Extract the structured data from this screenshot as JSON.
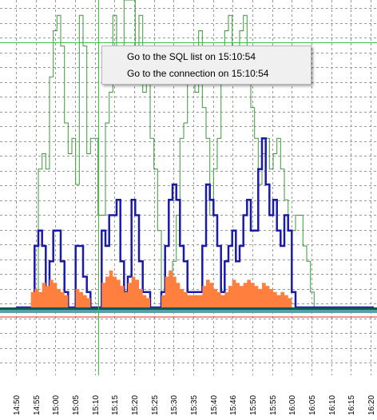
{
  "chart_data": {
    "type": "line",
    "title": "",
    "xlabel": "",
    "ylabel": "",
    "x_tick_labels": [
      "14:50",
      "14:55",
      "15:00",
      "15:05",
      "15:10",
      "15:15",
      "15:20",
      "15:25",
      "15:30",
      "15:35",
      "15:40",
      "15:46",
      "15:50",
      "15:55",
      "16:00",
      "16:05",
      "16:10",
      "16:15",
      "16:20"
    ],
    "grid": true,
    "selected_time": "15:10:54",
    "series": [
      {
        "color": "#3a9a3a",
        "style": "step-thin",
        "values": [
          0,
          0,
          0,
          0,
          0,
          0,
          0.45,
          0.5,
          0.45,
          0.75,
          0.9,
          0.95,
          0.85,
          0.6,
          0.5,
          0.55,
          0.4,
          0.95,
          0.85,
          0.5,
          0.55,
          0.55,
          0.3,
          0.3,
          0.6,
          0.7,
          0.95,
          0.8,
          0.75,
          1.0,
          1.0,
          1.0,
          0.85,
          0.95,
          0.7,
          0.85,
          0.55,
          0.45,
          0.25,
          0.05,
          0.05,
          0.1,
          0.15,
          0.3,
          0.55,
          0.6,
          0.75,
          0.75,
          0.7,
          0.9,
          0.65,
          0.55,
          0.3,
          0.45,
          0.55,
          0.75,
          0.9,
          0.95,
          0.85,
          0.75,
          0.9,
          0.95,
          0.85,
          0.65,
          0.55,
          0.4,
          0.5,
          0.55,
          0.45,
          0.5,
          0.55,
          0.45,
          0.35,
          0.25,
          0.25,
          0.3,
          0.3,
          0.2,
          0.15,
          0.05,
          0,
          0,
          0,
          0,
          0,
          0,
          0,
          0,
          0,
          0,
          0,
          0,
          0,
          0,
          0,
          0
        ]
      },
      {
        "color": "#1a1aaa",
        "style": "step-thick",
        "values": [
          0,
          0,
          0,
          0,
          0,
          0.2,
          0.25,
          0.2,
          0.05,
          0.15,
          0.25,
          0.25,
          0.15,
          0.05,
          0,
          0,
          0.2,
          0.2,
          0.1,
          0.05,
          0,
          0,
          0,
          0.25,
          0.2,
          0.3,
          0.3,
          0.35,
          0.15,
          0.05,
          0.1,
          0.35,
          0.3,
          0.15,
          0.05,
          0.05,
          0,
          0,
          0,
          0.05,
          0.2,
          0.35,
          0.4,
          0.35,
          0.2,
          0.15,
          0.05,
          0.05,
          0.05,
          0.05,
          0.2,
          0.4,
          0.35,
          0.3,
          0.2,
          0.05,
          0.15,
          0.2,
          0.25,
          0.15,
          0.2,
          0.3,
          0.35,
          0.25,
          0.25,
          0.45,
          0.55,
          0.4,
          0.3,
          0.35,
          0.25,
          0.2,
          0.3,
          0.25,
          0.05,
          0,
          0,
          0,
          0,
          0,
          0,
          0,
          0,
          0,
          0,
          0,
          0,
          0,
          0,
          0,
          0,
          0,
          0,
          0,
          0,
          0
        ]
      },
      {
        "color": "#ff7f3f",
        "style": "band",
        "values": [
          0,
          0,
          0,
          0,
          0.05,
          0.06,
          0.05,
          0.08,
          0.07,
          0.09,
          0.08,
          0.06,
          0.05,
          0.04,
          0,
          0,
          0.06,
          0.05,
          0.04,
          0.03,
          0,
          0,
          0,
          0.08,
          0.1,
          0.12,
          0.1,
          0.09,
          0.07,
          0.05,
          0.08,
          0.1,
          0.09,
          0.06,
          0.04,
          0.03,
          0,
          0,
          0,
          0.04,
          0.1,
          0.12,
          0.1,
          0.08,
          0.06,
          0.05,
          0.04,
          0.04,
          0.04,
          0.04,
          0.07,
          0.09,
          0.08,
          0.06,
          0.05,
          0.04,
          0.05,
          0.07,
          0.09,
          0.08,
          0.07,
          0.08,
          0.09,
          0.08,
          0.07,
          0.06,
          0.08,
          0.07,
          0.06,
          0.05,
          0.04,
          0.05,
          0.04,
          0.03,
          0,
          0,
          0,
          0,
          0,
          0,
          0,
          0,
          0,
          0,
          0,
          0,
          0,
          0,
          0,
          0,
          0,
          0,
          0,
          0,
          0
        ]
      }
    ]
  },
  "context_menu": {
    "items": [
      "Go to the SQL list on 15:10:54",
      "Go to the connection on 15:10:54"
    ]
  }
}
